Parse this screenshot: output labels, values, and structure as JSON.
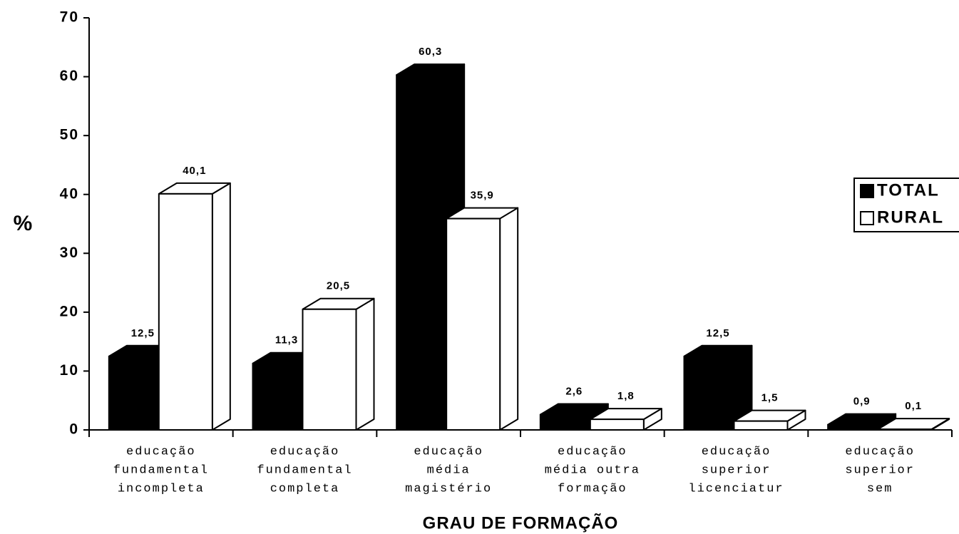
{
  "chart_data": {
    "type": "bar3d",
    "y_label": "%",
    "x_label": "GRAU DE FORMAÇÃO",
    "categories": [
      [
        "educação",
        "fundamental",
        "incompleta"
      ],
      [
        "educação",
        "fundamental",
        "completa"
      ],
      [
        "educação",
        "média",
        "magistério"
      ],
      [
        "educação",
        "média outra",
        "formação"
      ],
      [
        "educação",
        "superior",
        "licenciatur"
      ],
      [
        "educação",
        "superior",
        "sem"
      ]
    ],
    "series": [
      {
        "name": "TOTAL",
        "color": "#000000",
        "values": [
          12.5,
          11.3,
          60.3,
          2.6,
          12.5,
          0.9
        ],
        "value_labels": [
          "12,5",
          "11,3",
          "60,3",
          "2,6",
          "12,5",
          "0,9"
        ]
      },
      {
        "name": "RURAL",
        "color": "#ffffff",
        "values": [
          40.1,
          20.5,
          35.9,
          1.8,
          1.5,
          0.1
        ],
        "value_labels": [
          "40,1",
          "20,5",
          "35,9",
          "1,8",
          "1,5",
          "0,1"
        ]
      }
    ],
    "ylim": [
      0,
      70
    ],
    "yticks": [
      0,
      10,
      20,
      30,
      40,
      50,
      60,
      70
    ],
    "legend": "right"
  }
}
